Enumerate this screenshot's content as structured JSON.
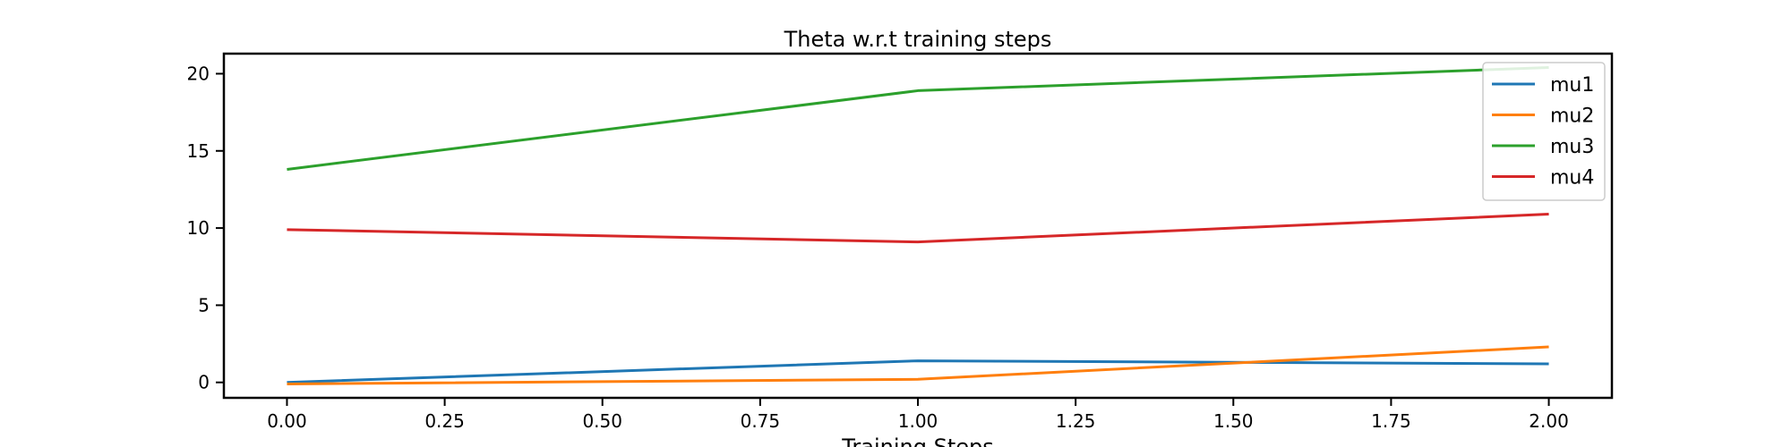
{
  "chart_data": {
    "type": "line",
    "title": "Theta w.r.t training steps",
    "xlabel": "Training Steps",
    "ylabel": "",
    "xlim": [
      -0.1,
      2.1
    ],
    "ylim": [
      -1.0,
      21.3
    ],
    "xticks": [
      0.0,
      0.25,
      0.5,
      0.75,
      1.0,
      1.25,
      1.5,
      1.75,
      2.0
    ],
    "xtick_labels": [
      "0.00",
      "0.25",
      "0.50",
      "0.75",
      "1.00",
      "1.25",
      "1.50",
      "1.75",
      "2.00"
    ],
    "yticks": [
      0,
      5,
      10,
      15,
      20
    ],
    "ytick_labels": [
      "0",
      "5",
      "10",
      "15",
      "20"
    ],
    "x": [
      0,
      1,
      2
    ],
    "series": [
      {
        "name": "mu1",
        "color": "#1f77b4",
        "values": [
          0.0,
          1.4,
          1.2
        ]
      },
      {
        "name": "mu2",
        "color": "#ff7f0e",
        "values": [
          -0.1,
          0.2,
          2.3
        ]
      },
      {
        "name": "mu3",
        "color": "#2ca02c",
        "values": [
          13.8,
          18.9,
          20.4
        ]
      },
      {
        "name": "mu4",
        "color": "#d62728",
        "values": [
          9.9,
          9.1,
          10.9
        ]
      }
    ],
    "grid": false,
    "legend": "top-right"
  }
}
